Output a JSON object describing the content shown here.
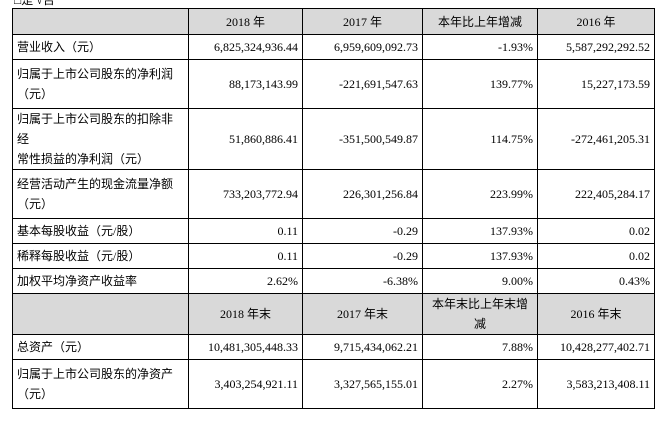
{
  "top_note": "□是 √否",
  "table": {
    "header1": [
      "",
      "2018 年",
      "2017 年",
      "本年比上年增减",
      "2016 年"
    ],
    "rows1": [
      [
        [
          "营业收入（元）"
        ],
        "6,825,324,936.44",
        "6,959,609,092.73",
        "-1.93%",
        "5,587,292,292.52"
      ],
      [
        [
          "归属于上市公司股东的净利润",
          "（元）"
        ],
        "88,173,143.99",
        "-221,691,547.63",
        "139.77%",
        "15,227,173.59"
      ],
      [
        [
          "归属于上市公司股东的扣除非经",
          "常性损益的净利润（元）"
        ],
        "51,860,886.41",
        "-351,500,549.87",
        "114.75%",
        "-272,461,205.31"
      ],
      [
        [
          "经营活动产生的现金流量净额",
          "（元）"
        ],
        "733,203,772.94",
        "226,301,256.84",
        "223.99%",
        "222,405,284.17"
      ],
      [
        [
          "基本每股收益（元/股）"
        ],
        "0.11",
        "-0.29",
        "137.93%",
        "0.02"
      ],
      [
        [
          "稀释每股收益（元/股）"
        ],
        "0.11",
        "-0.29",
        "137.93%",
        "0.02"
      ],
      [
        [
          "加权平均净资产收益率"
        ],
        "2.62%",
        "-6.38%",
        "9.00%",
        "0.43%"
      ]
    ],
    "header2": [
      "",
      "2018 年末",
      "2017 年末",
      "本年末比上年末增减",
      "2016 年末"
    ],
    "rows2": [
      [
        [
          "总资产（元）"
        ],
        "10,481,305,448.33",
        "9,715,434,062.21",
        "7.88%",
        "10,428,277,402.71"
      ],
      [
        [
          "归属于上市公司股东的净资产",
          "（元）"
        ],
        "3,403,254,921.11",
        "3,327,565,155.01",
        "2.27%",
        "3,583,213,408.11"
      ]
    ]
  }
}
